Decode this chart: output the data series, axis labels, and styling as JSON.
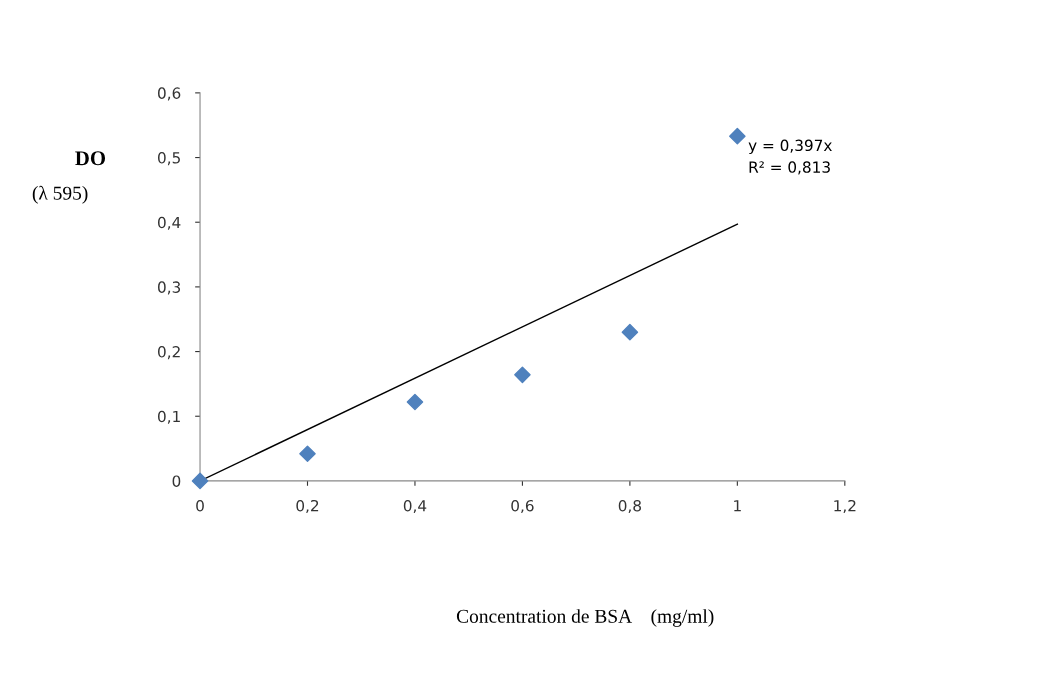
{
  "chart_data": {
    "type": "scatter",
    "ylabel": "DO",
    "xlabel": "Concentration de BSA    (mg/ml)",
    "annotations": [
      "(λ 595)",
      "y = 0,397x\nR² = 0,813"
    ],
    "series": [
      {
        "color": "#4f81bd",
        "marker": "diamond",
        "x": [
          0,
          0.2,
          0.4,
          0.6,
          0.8,
          1
        ],
        "values": [
          0,
          0.042,
          0.122,
          0.164,
          0.23,
          0.533
        ]
      },
      {
        "type": "line",
        "color": "#000000",
        "marker": "none",
        "x": [
          0,
          1
        ],
        "values": [
          0,
          0.397
        ]
      }
    ],
    "xlim": [
      0,
      1.2
    ],
    "ylim": [
      0,
      0.6
    ],
    "xticks": [
      0,
      {
        "value": 0.2,
        "label": "0,2"
      },
      {
        "value": 0.4,
        "label": "0,4"
      },
      {
        "value": 0.6,
        "label": "0,6"
      },
      {
        "value": 0.8,
        "label": "0,8"
      },
      1,
      {
        "value": 1.2,
        "label": "1,2"
      }
    ],
    "yticks": [
      0,
      {
        "value": 0.1,
        "label": "0,1"
      },
      {
        "value": 0.2,
        "label": "0,2"
      },
      {
        "value": 0.3,
        "label": "0,3"
      },
      {
        "value": 0.4,
        "label": "0,4"
      },
      {
        "value": 0.5,
        "label": "0,5"
      },
      {
        "value": 0.6,
        "label": "0,6"
      }
    ],
    "grid": false,
    "legend": false
  }
}
